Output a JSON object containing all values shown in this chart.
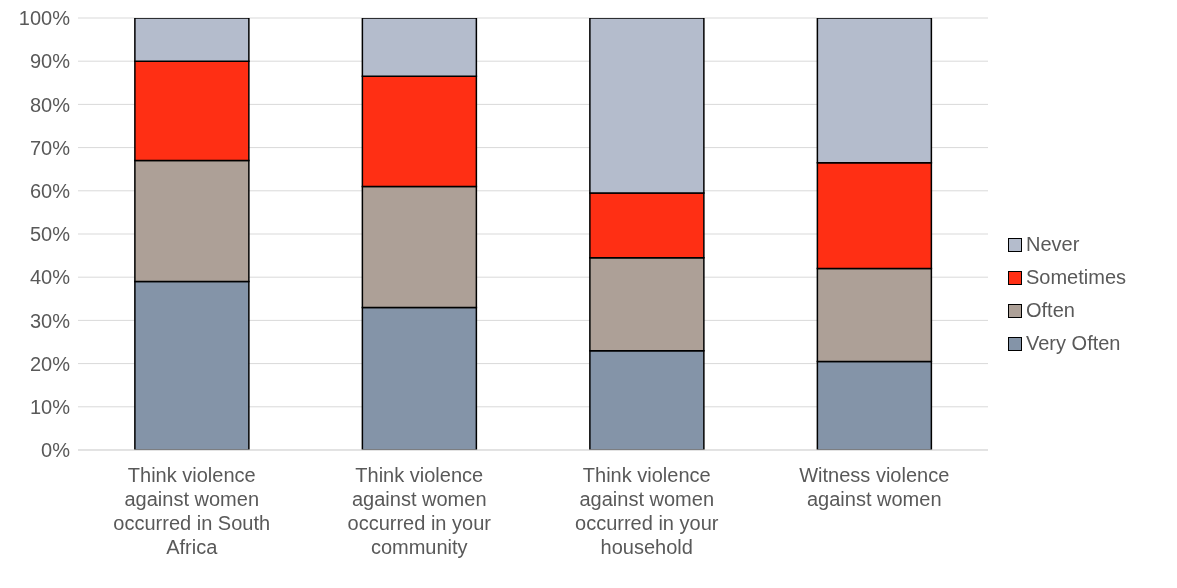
{
  "chart_data": {
    "type": "bar",
    "stacked": true,
    "categories": [
      "Think violence against women occurred in South Africa",
      "Think violence against women occurred in your community",
      "Think violence against women occurred in your household",
      "Witness violence against women"
    ],
    "series": [
      {
        "name": "Very Often",
        "color": "#8494a8",
        "values": [
          39,
          33,
          23,
          20.5
        ]
      },
      {
        "name": "Often",
        "color": "#ada097",
        "values": [
          28,
          28,
          21.5,
          21.5
        ]
      },
      {
        "name": "Sometimes",
        "color": "#ff2f14",
        "values": [
          23,
          25.5,
          15,
          24.5
        ]
      },
      {
        "name": "Never",
        "color": "#b4bccc",
        "values": [
          10,
          13.5,
          40.5,
          33.5
        ]
      }
    ],
    "ylim": [
      0,
      100
    ],
    "yticks": [
      {
        "value": 0,
        "label": "0%"
      },
      {
        "value": 10,
        "label": "10%"
      },
      {
        "value": 20,
        "label": "20%"
      },
      {
        "value": 30,
        "label": "30%"
      },
      {
        "value": 40,
        "label": "40%"
      },
      {
        "value": 50,
        "label": "50%"
      },
      {
        "value": 60,
        "label": "60%"
      },
      {
        "value": 70,
        "label": "70%"
      },
      {
        "value": 80,
        "label": "80%"
      },
      {
        "value": 90,
        "label": "90%"
      },
      {
        "value": 100,
        "label": "100%"
      }
    ],
    "grid": "y",
    "legend": "right"
  }
}
